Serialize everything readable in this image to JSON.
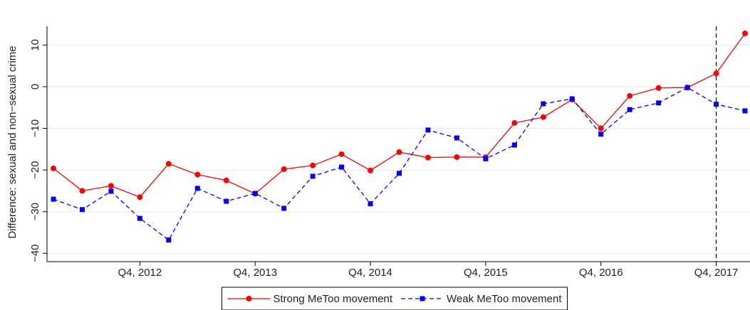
{
  "chart_data": {
    "type": "line",
    "y_label": "Difference: sexual and non−sexual crime",
    "categories": [
      null,
      null,
      null,
      "Q4, 2012",
      null,
      null,
      null,
      "Q4, 2013",
      null,
      null,
      null,
      "Q4, 2014",
      null,
      null,
      null,
      "Q4, 2015",
      null,
      null,
      null,
      "Q4, 2016",
      null,
      null,
      null,
      "Q4, 2017",
      null
    ],
    "series": [
      {
        "name": "Strong MeToo movement",
        "color": "#ff0000",
        "marker": "circle",
        "dash": "solid",
        "values": [
          -19.6,
          -25.0,
          -23.8,
          -26.5,
          -18.5,
          -21.1,
          -22.5,
          -25.7,
          -19.8,
          -18.9,
          -16.2,
          -20.1,
          -15.7,
          -17.0,
          -16.9,
          -16.9,
          -8.7,
          -7.3,
          -3.1,
          -10.0,
          -2.2,
          -0.3,
          -0.2,
          3.2,
          12.8
        ]
      },
      {
        "name": "Weak MeToo movement",
        "color": "#0000ff",
        "marker": "square",
        "dash": "dashed",
        "values": [
          -27.0,
          -29.5,
          -25.1,
          -31.6,
          -36.8,
          -24.4,
          -27.5,
          -25.6,
          -29.2,
          -21.5,
          -19.3,
          -28.1,
          -20.8,
          -10.4,
          -12.3,
          -17.3,
          -14.0,
          -4.1,
          -2.9,
          -11.4,
          -5.5,
          -3.9,
          -0.2,
          -4.2,
          -5.8
        ]
      }
    ],
    "ylim": [
      -42,
      14.5
    ],
    "yticks": [
      {
        "value": -40,
        "label": "−40"
      },
      {
        "value": -30,
        "label": "−30"
      },
      {
        "value": -20,
        "label": "−20"
      },
      {
        "value": -10,
        "label": "−10"
      },
      0,
      10
    ],
    "grid": true,
    "vline_index": 23,
    "legend": "bottom"
  }
}
